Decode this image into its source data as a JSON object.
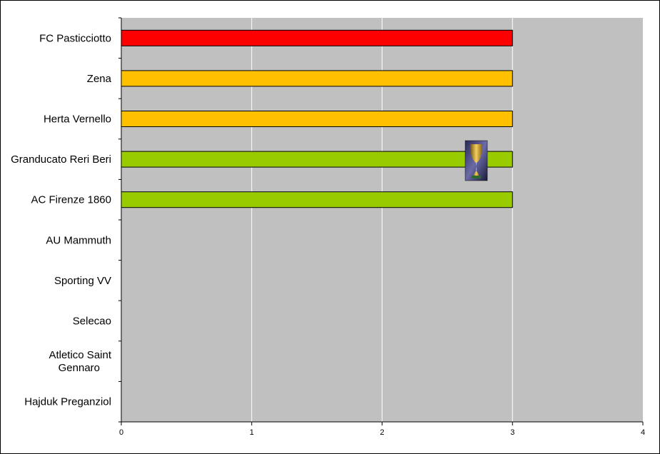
{
  "chart_data": {
    "type": "bar",
    "orientation": "horizontal",
    "categories": [
      "FC Pasticciotto",
      "Zena",
      "Herta Vernello",
      "Granducato Reri Beri",
      "AC Firenze 1860",
      "AU Mammuth",
      "Sporting VV",
      "Selecao",
      "Atletico Saint Gennaro",
      "Hajduk Preganziol"
    ],
    "values": [
      3,
      3,
      3,
      3,
      3,
      0,
      0,
      0,
      0,
      0
    ],
    "bar_colors": [
      "#ff0000",
      "#ffc000",
      "#ffc000",
      "#99cc00",
      "#99cc00",
      "#99cc00",
      "#99cc00",
      "#99cc00",
      "#99cc00",
      "#99cc00"
    ],
    "xlim": [
      0,
      4
    ],
    "xticks": [
      "0",
      "1",
      "2",
      "3",
      "4"
    ],
    "grid": true,
    "plot_background": "#c0c0c0",
    "legend": "none",
    "annotation_icon": "trophy-icon"
  }
}
